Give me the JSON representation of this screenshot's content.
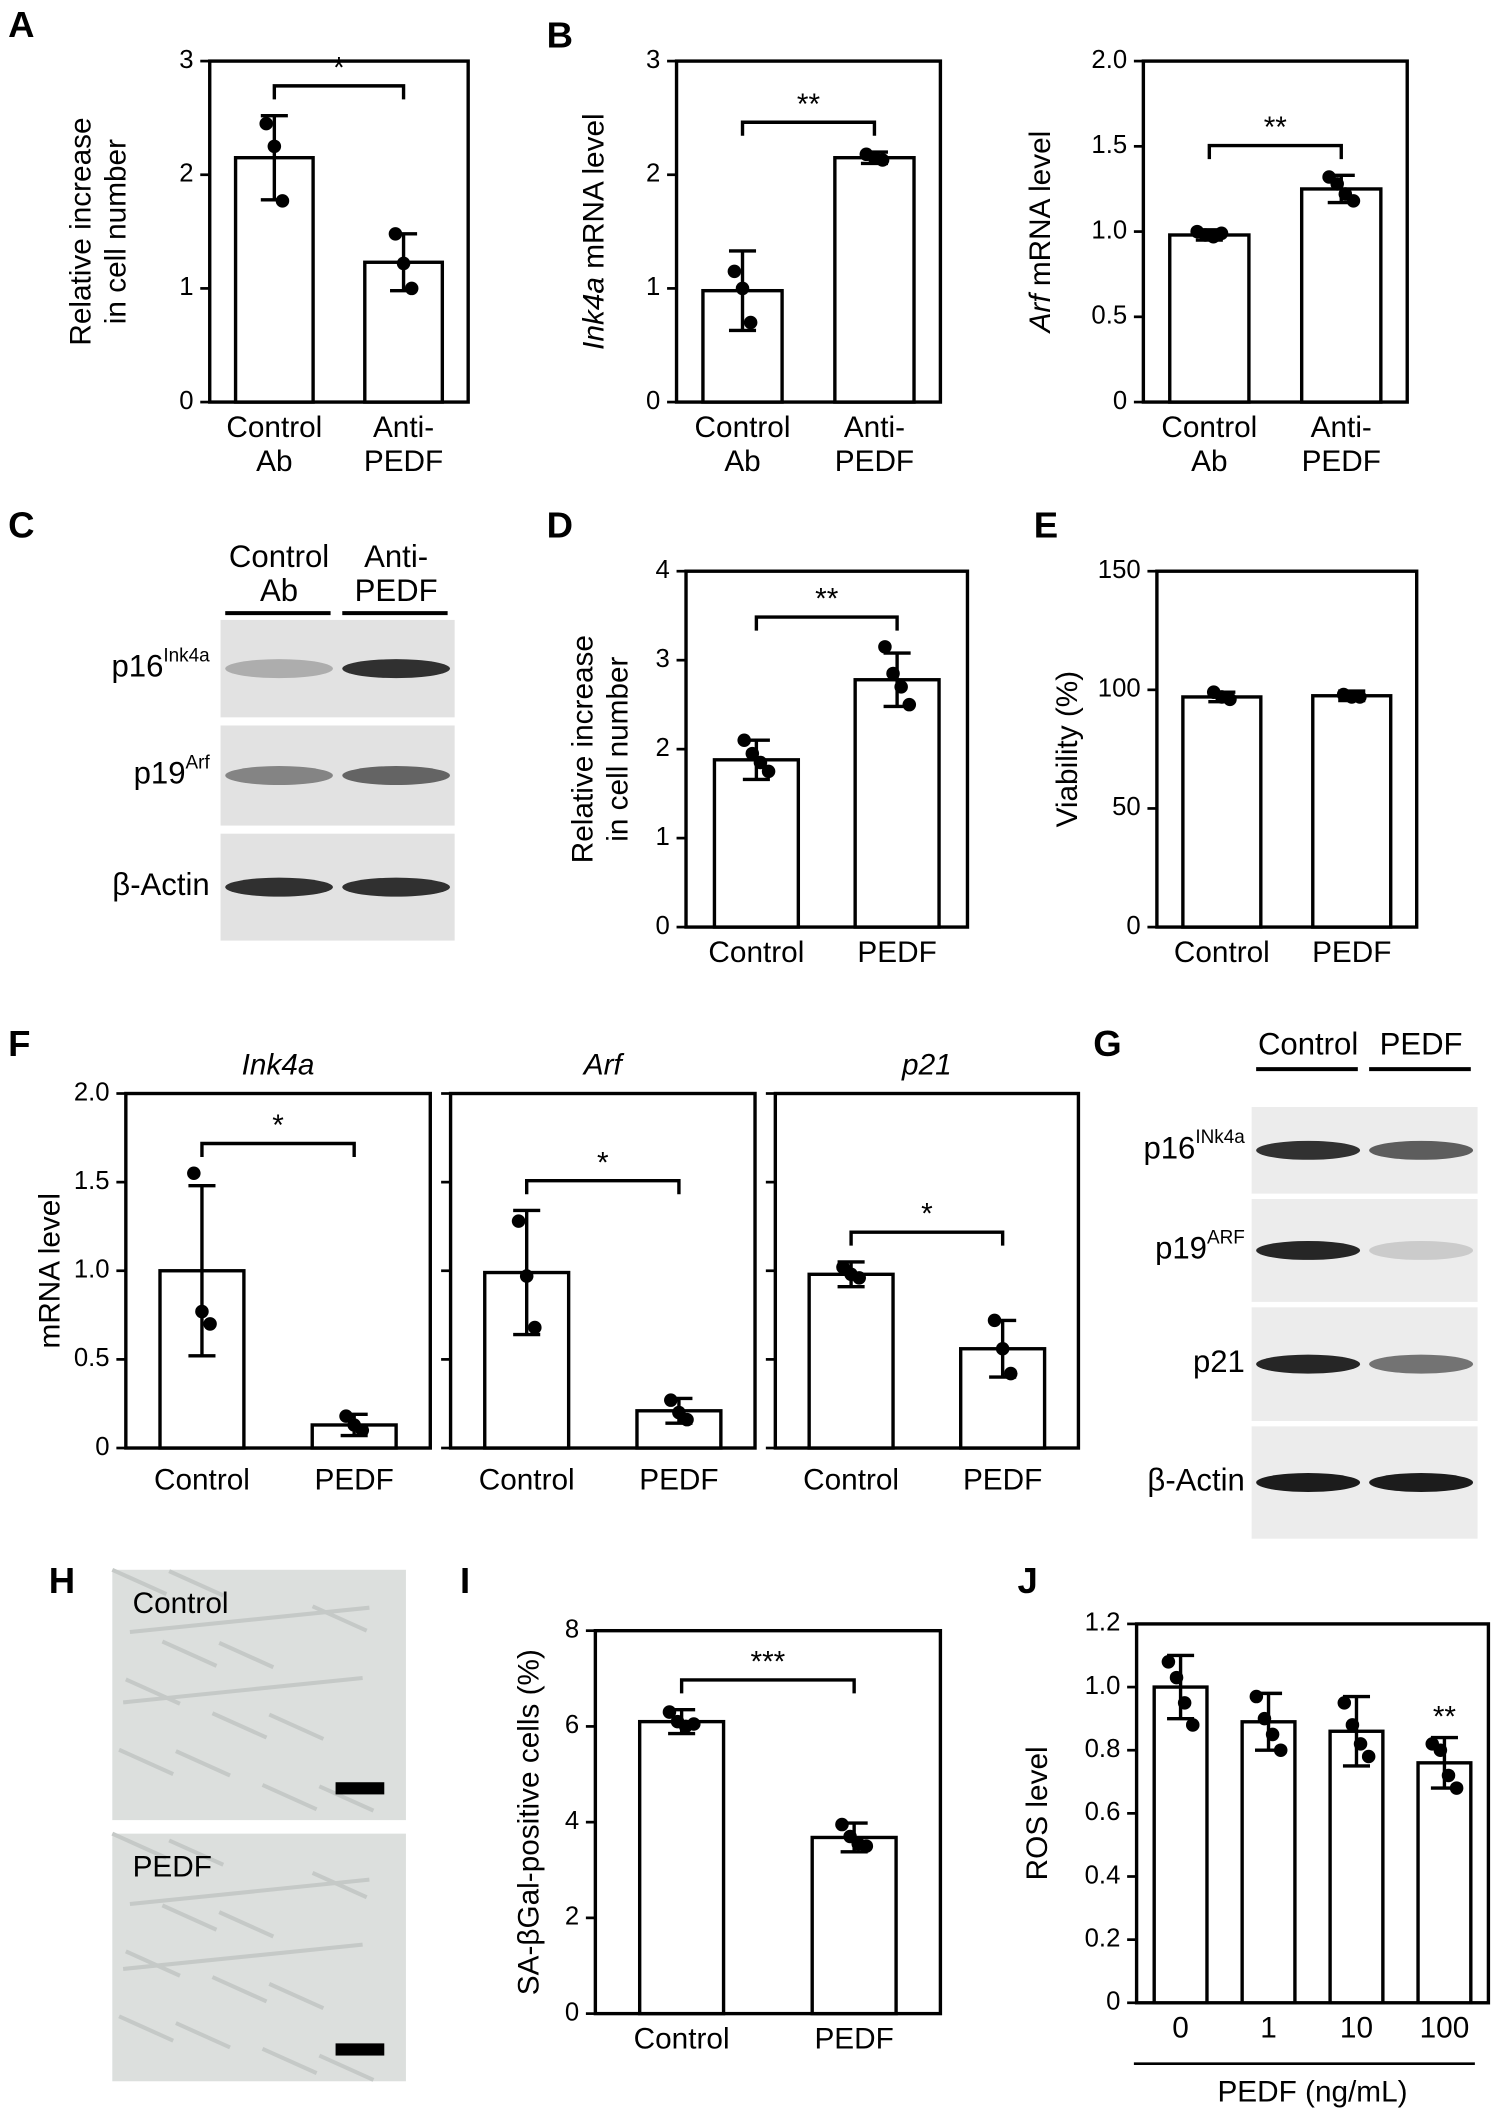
{
  "chart_data": [
    {
      "type": "bar",
      "panel": "A",
      "ylabel": [
        [
          {
            "text": "Relative increase"
          }
        ],
        [
          {
            "text": "in cell number"
          }
        ]
      ],
      "categories": [
        [
          "Control",
          "Ab"
        ],
        [
          "Anti-",
          "PEDF"
        ]
      ],
      "values": [
        2.15,
        1.23
      ],
      "errors": [
        0.37,
        0.25
      ],
      "points": [
        [
          2.45,
          2.25,
          1.77
        ],
        [
          1.48,
          1.22,
          1.0
        ]
      ],
      "ylim": [
        0,
        3
      ],
      "yticks": [
        0,
        1,
        2,
        3
      ],
      "sig": {
        "text": "*",
        "between": [
          0,
          1
        ]
      }
    },
    {
      "type": "bar",
      "panel": "B",
      "ylabel": [
        [
          {
            "text": "Ink4a",
            "italic": true
          },
          {
            "text": " mRNA level"
          }
        ]
      ],
      "categories": [
        [
          "Control",
          "Ab"
        ],
        [
          "Anti-",
          "PEDF"
        ]
      ],
      "values": [
        0.98,
        2.15
      ],
      "errors": [
        0.35,
        0.05
      ],
      "points": [
        [
          1.15,
          1.0,
          0.7
        ],
        [
          2.18,
          2.15,
          2.13
        ]
      ],
      "ylim": [
        0,
        3
      ],
      "yticks": [
        0,
        1,
        2,
        3
      ],
      "sig": {
        "text": "**",
        "between": [
          0,
          1
        ]
      }
    },
    {
      "type": "bar",
      "ylabel": [
        [
          {
            "text": "Arf",
            "italic": true
          },
          {
            "text": " mRNA level"
          }
        ]
      ],
      "categories": [
        [
          "Control",
          "Ab"
        ],
        [
          "Anti-",
          "PEDF"
        ]
      ],
      "values": [
        0.98,
        1.25
      ],
      "errors": [
        0.03,
        0.08
      ],
      "points": [
        [
          1.0,
          0.98,
          0.97,
          0.99
        ],
        [
          1.32,
          1.28,
          1.22,
          1.18
        ]
      ],
      "ylim": [
        0,
        2
      ],
      "yticks": [
        0,
        0.5,
        {
          "value": 1,
          "label": "1.0"
        },
        1.5,
        {
          "value": 2,
          "label": "2.0"
        }
      ],
      "sig": {
        "text": "**",
        "between": [
          0,
          1
        ]
      }
    },
    {
      "type": "bar",
      "panel": "D",
      "ylabel": [
        [
          {
            "text": "Relative increase"
          }
        ],
        [
          {
            "text": "in cell number"
          }
        ]
      ],
      "categories": [
        "Control",
        "PEDF"
      ],
      "values": [
        1.88,
        2.78
      ],
      "errors": [
        0.22,
        0.3
      ],
      "points": [
        [
          2.1,
          1.95,
          1.85,
          1.75
        ],
        [
          3.15,
          2.85,
          2.7,
          2.5
        ]
      ],
      "ylim": [
        0,
        4
      ],
      "yticks": [
        0,
        1,
        2,
        3,
        4
      ],
      "sig": {
        "text": "**",
        "between": [
          0,
          1
        ]
      }
    },
    {
      "type": "bar",
      "panel": "E",
      "ylabel": [
        [
          {
            "text": "Viability (%)"
          }
        ]
      ],
      "categories": [
        "Control",
        "PEDF"
      ],
      "values": [
        97,
        97.5
      ],
      "errors": [
        2,
        2
      ],
      "points": [
        [
          99,
          97,
          96
        ],
        [
          98,
          97,
          97
        ]
      ],
      "ylim": [
        0,
        150
      ],
      "yticks": [
        0,
        50,
        100,
        150
      ]
    },
    {
      "type": "bar",
      "panel": "F",
      "title": [
        {
          "text": "Ink4a",
          "italic": true
        }
      ],
      "ylabel": [
        [
          {
            "text": "mRNA level"
          }
        ]
      ],
      "categories": [
        "Control",
        "PEDF"
      ],
      "values": [
        1.0,
        0.13
      ],
      "errors": [
        0.48,
        0.06
      ],
      "points": [
        [
          1.55,
          0.77,
          0.7
        ],
        [
          0.18,
          0.13,
          0.1
        ]
      ],
      "ylim": [
        0,
        2
      ],
      "yticks": [
        0,
        0.5,
        {
          "value": 1,
          "label": "1.0"
        },
        1.5,
        {
          "value": 2,
          "label": "2.0"
        }
      ],
      "sig": {
        "text": "*",
        "between": [
          0,
          1
        ]
      }
    },
    {
      "type": "bar",
      "title": [
        {
          "text": "Arf",
          "italic": true
        }
      ],
      "categories": [
        "Control",
        "PEDF"
      ],
      "values": [
        0.99,
        0.21
      ],
      "errors": [
        0.35,
        0.07
      ],
      "points": [
        [
          1.28,
          0.97,
          0.68
        ],
        [
          0.27,
          0.2,
          0.16
        ]
      ],
      "ylim": [
        0,
        2
      ],
      "yticks": [
        0,
        0.5,
        1,
        1.5,
        2
      ],
      "tick_labels": false,
      "sig": {
        "text": "*",
        "between": [
          0,
          1
        ]
      }
    },
    {
      "type": "bar",
      "title": [
        {
          "text": "p21",
          "italic": true
        }
      ],
      "categories": [
        "Control",
        "PEDF"
      ],
      "values": [
        0.98,
        0.56
      ],
      "errors": [
        0.07,
        0.16
      ],
      "points": [
        [
          1.02,
          0.98,
          0.96
        ],
        [
          0.72,
          0.56,
          0.42
        ]
      ],
      "ylim": [
        0,
        2
      ],
      "yticks": [
        0,
        0.5,
        1,
        1.5,
        2
      ],
      "tick_labels": false,
      "sig": {
        "text": "*",
        "between": [
          0,
          1
        ]
      }
    },
    {
      "type": "bar",
      "panel": "I",
      "ylabel": [
        [
          {
            "text": "SA-βGal-positive cells (%)"
          }
        ]
      ],
      "categories": [
        "Control",
        "PEDF"
      ],
      "values": [
        6.1,
        3.68
      ],
      "errors": [
        0.25,
        0.3
      ],
      "points": [
        [
          6.3,
          6.1,
          6.0,
          6.05
        ],
        [
          3.95,
          3.7,
          3.55,
          3.5
        ]
      ],
      "ylim": [
        0,
        8
      ],
      "yticks": [
        0,
        2,
        4,
        6,
        8
      ],
      "sig": {
        "text": "***",
        "between": [
          0,
          1
        ]
      }
    },
    {
      "type": "bar",
      "panel": "J",
      "ylabel": [
        [
          {
            "text": "ROS level"
          }
        ]
      ],
      "xlabel": "PEDF (ng/mL)",
      "categories": [
        "0",
        "1",
        "10",
        "100"
      ],
      "values": [
        1.0,
        0.89,
        0.86,
        0.76
      ],
      "errors": [
        0.1,
        0.09,
        0.11,
        0.08
      ],
      "points": [
        [
          1.08,
          1.03,
          0.95,
          0.88
        ],
        [
          0.97,
          0.9,
          0.85,
          0.8
        ],
        [
          0.95,
          0.88,
          0.82,
          0.78
        ],
        [
          0.82,
          0.8,
          0.72,
          0.68
        ]
      ],
      "ylim": [
        0,
        1.2
      ],
      "yticks": [
        0,
        0.2,
        0.4,
        0.6,
        0.8,
        {
          "value": 1,
          "label": "1.0"
        },
        1.2
      ],
      "annotations": [
        {
          "text": "**",
          "category": 3
        }
      ]
    }
  ],
  "blots": [
    {
      "panel": "C",
      "columns": [
        [
          "Control",
          "Ab"
        ],
        [
          "Anti-",
          "PEDF"
        ]
      ],
      "rows": [
        {
          "text": "p16",
          "sup": "Ink4a"
        },
        {
          "text": "p19",
          "sup": "Arf"
        },
        {
          "text": "β-Actin"
        }
      ]
    },
    {
      "panel": "G",
      "columns": [
        [
          "Control"
        ],
        [
          "PEDF"
        ]
      ],
      "rows": [
        {
          "text": "p16",
          "sup": "INk4a"
        },
        {
          "text": "p19",
          "sup": "ARF"
        },
        {
          "text": "p21"
        },
        {
          "text": "β-Actin"
        }
      ]
    }
  ],
  "images": {
    "panel": "H",
    "labels": [
      "Control",
      "PEDF"
    ]
  }
}
